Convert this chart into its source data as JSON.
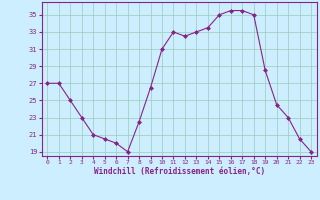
{
  "x": [
    0,
    1,
    2,
    3,
    4,
    5,
    6,
    7,
    8,
    9,
    10,
    11,
    12,
    13,
    14,
    15,
    16,
    17,
    18,
    19,
    20,
    21,
    22,
    23
  ],
  "y": [
    27,
    27,
    25,
    23,
    21,
    20.5,
    20,
    19,
    22.5,
    26.5,
    31,
    33,
    32.5,
    33,
    33.5,
    35,
    35.5,
    35.5,
    35,
    28.5,
    24.5,
    23,
    20.5,
    19
  ],
  "line_color": "#882288",
  "marker_color": "#882288",
  "bg_color": "#cceeff",
  "grid_color": "#99ccbb",
  "xlabel": "Windchill (Refroidissement éolien,°C)",
  "xlabel_color": "#882288",
  "tick_color": "#882288",
  "axis_color": "#882288",
  "ylim": [
    18.5,
    36.5
  ],
  "xlim": [
    -0.5,
    23.5
  ],
  "yticks": [
    19,
    21,
    23,
    25,
    27,
    29,
    31,
    33,
    35
  ],
  "xtick_labels": [
    "0",
    "1",
    "2",
    "3",
    "4",
    "5",
    "6",
    "7",
    "8",
    "9",
    "10",
    "11",
    "12",
    "13",
    "14",
    "15",
    "16",
    "17",
    "18",
    "19",
    "20",
    "21",
    "22",
    "23"
  ],
  "figsize": [
    3.2,
    2.0
  ],
  "dpi": 100
}
